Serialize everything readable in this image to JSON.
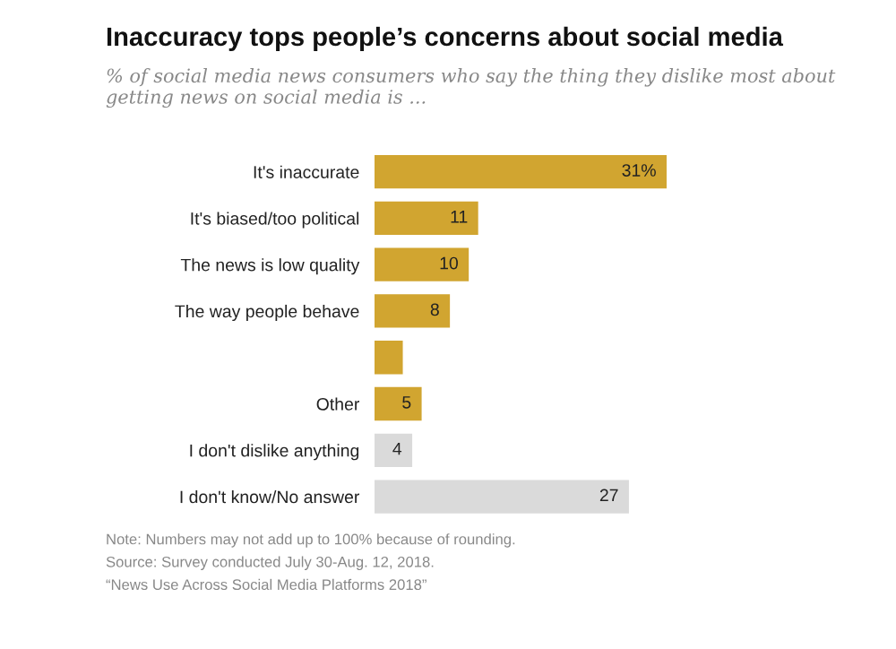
{
  "chart_data": {
    "type": "bar",
    "orientation": "horizontal",
    "title": "Inaccuracy tops people’s concerns about social media",
    "subtitle": "% of social media news consumers who say the thing they dislike most about getting news on social media is ...",
    "categories": [
      "It's inaccurate",
      "It's biased/too political",
      "The news is low quality",
      "The way people behave",
      null,
      "Other",
      "I don't dislike anything",
      "I don't know/No answer"
    ],
    "values": [
      31,
      11,
      10,
      8,
      3,
      5,
      4,
      27
    ],
    "colors": [
      "#d1a530",
      "#d1a530",
      "#d1a530",
      "#d1a530",
      "#d1a530",
      "#d1a530",
      "#dadada",
      "#dadada"
    ],
    "value_labels": [
      "31%",
      "11",
      "10",
      "8",
      null,
      "5",
      "4",
      "27"
    ],
    "annotations": [
      "Note: Numbers may not add up to 100% because of rounding.",
      "Source: Survey conducted July 30-Aug. 12, 2018.",
      "“News Use Across Social Media Platforms 2018”"
    ]
  }
}
